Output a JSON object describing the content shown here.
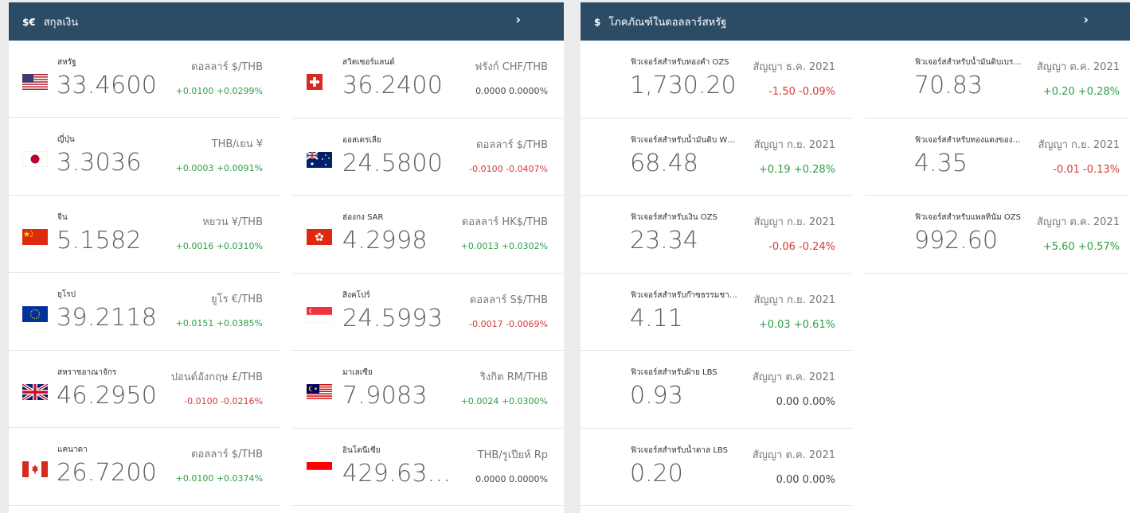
{
  "currency_panel": {
    "icon": "$€",
    "title": "สกุลเงิน",
    "chevron": "›",
    "left_column": [
      {
        "name": "สหรัฐ",
        "flag": "flag-us",
        "rate": "33.4600",
        "pair": "ดอลลาร์ $/THB",
        "change": "+0.0100 +0.0299%",
        "trend": "pos"
      },
      {
        "name": "ญี่ปุ่น",
        "flag": "flag-jp",
        "rate": "3.3036",
        "pair": "THB/เยน ¥",
        "change": "+0.0003 +0.0091%",
        "trend": "pos"
      },
      {
        "name": "จีน",
        "flag": "flag-cn",
        "rate": "5.1582",
        "pair": "หยวน ¥/THB",
        "change": "+0.0016 +0.0310%",
        "trend": "pos"
      },
      {
        "name": "ยุโรป",
        "flag": "flag-eu",
        "rate": "39.2118",
        "pair": "ยูโร €/THB",
        "change": "+0.0151 +0.0385%",
        "trend": "pos"
      },
      {
        "name": "สหราชอาณาจักร",
        "flag": "flag-uk",
        "rate": "46.2950",
        "pair": "ปอนด์อังกฤษ £/THB",
        "change": "-0.0100 -0.0216%",
        "trend": "neg"
      },
      {
        "name": "แคนาดา",
        "flag": "flag-ca",
        "rate": "26.7200",
        "pair": "ดอลลาร์ $/THB",
        "change": "+0.0100 +0.0374%",
        "trend": "pos"
      }
    ],
    "right_column": [
      {
        "name": "สวิตเซอร์แลนด์",
        "flag": "flag-ch",
        "rate": "36.2400",
        "pair": "ฟรังก์ CHF/THB",
        "change": "0.0000 0.0000%",
        "trend": "neu"
      },
      {
        "name": "ออสเตรเลีย",
        "flag": "flag-au",
        "rate": "24.5800",
        "pair": "ดอลลาร์ $/THB",
        "change": "-0.0100 -0.0407%",
        "trend": "neg"
      },
      {
        "name": "ฮ่องกง SAR",
        "flag": "flag-hk",
        "rate": "4.2998",
        "pair": "ดอลลาร์ HK$/THB",
        "change": "+0.0013 +0.0302%",
        "trend": "pos"
      },
      {
        "name": "สิงคโปร์",
        "flag": "flag-sg",
        "rate": "24.5993",
        "pair": "ดอลลาร์ S$/THB",
        "change": "-0.0017 -0.0069%",
        "trend": "neg"
      },
      {
        "name": "มาเลเซีย",
        "flag": "flag-my",
        "rate": "7.9083",
        "pair": "ริงกิต RM/THB",
        "change": "+0.0024 +0.0300%",
        "trend": "pos"
      },
      {
        "name": "อินโดนีเซีย",
        "flag": "flag-id",
        "rate": "429.63...",
        "pair": "THB/รูเปียห์ Rp",
        "change": "0.0000 0.0000%",
        "trend": "neu"
      }
    ]
  },
  "commodity_panel": {
    "icon": "$",
    "title": "โภคภัณฑ์ในดอลลาร์สหรัฐ",
    "chevron": "›",
    "left_column": [
      {
        "name": "ฟิวเจอร์สสำหรับทองคำ OZS",
        "price": "1,730.20",
        "contract": "สัญญา ธ.ค. 2021",
        "change": "-1.50 -0.09%",
        "trend": "neg"
      },
      {
        "name": "ฟิวเจอร์สสำหรับน้ำมันดิบ WTI BBL",
        "price": "68.48",
        "contract": "สัญญา ก.ย. 2021",
        "change": "+0.19 +0.28%",
        "trend": "pos"
      },
      {
        "name": "ฟิวเจอร์สสำหรับเงิน OZS",
        "price": "23.34",
        "contract": "สัญญา ก.ย. 2021",
        "change": "-0.06 -0.24%",
        "trend": "neg"
      },
      {
        "name": "ฟิวเจอร์สสำหรับก๊าซธรรมชาติ MMBTU",
        "price": "4.11",
        "contract": "สัญญา ก.ย. 2021",
        "change": "+0.03 +0.61%",
        "trend": "pos"
      },
      {
        "name": "ฟิวเจอร์สสำหรับฝ้าย LBS",
        "price": "0.93",
        "contract": "สัญญา ต.ค. 2021",
        "change": "0.00 0.00%",
        "trend": "neu"
      },
      {
        "name": "ฟิวเจอร์สสำหรับน้ำตาล LBS",
        "price": "0.20",
        "contract": "สัญญา ต.ค. 2021",
        "change": "0.00 0.00%",
        "trend": "neu"
      }
    ],
    "right_column": [
      {
        "name": "ฟิวเจอร์สสำหรับน้ำมันดิบเบรนท์ BBL",
        "price": "70.83",
        "contract": "สัญญา ต.ค. 2021",
        "change": "+0.20 +0.28%",
        "trend": "pos"
      },
      {
        "name": "ฟิวเจอร์สสำหรับทองแดงของสหรัฐ LBS",
        "price": "4.35",
        "contract": "สัญญา ก.ย. 2021",
        "change": "-0.01 -0.13%",
        "trend": "neg"
      },
      {
        "name": "ฟิวเจอร์สสำหรับแพลทินัม OZS",
        "price": "992.60",
        "contract": "สัญญา ต.ค. 2021",
        "change": "+5.60 +0.57%",
        "trend": "pos"
      }
    ]
  },
  "colors": {
    "header_bg": "#2c4c66",
    "positive": "#2f9e47",
    "negative": "#d23b3b"
  }
}
